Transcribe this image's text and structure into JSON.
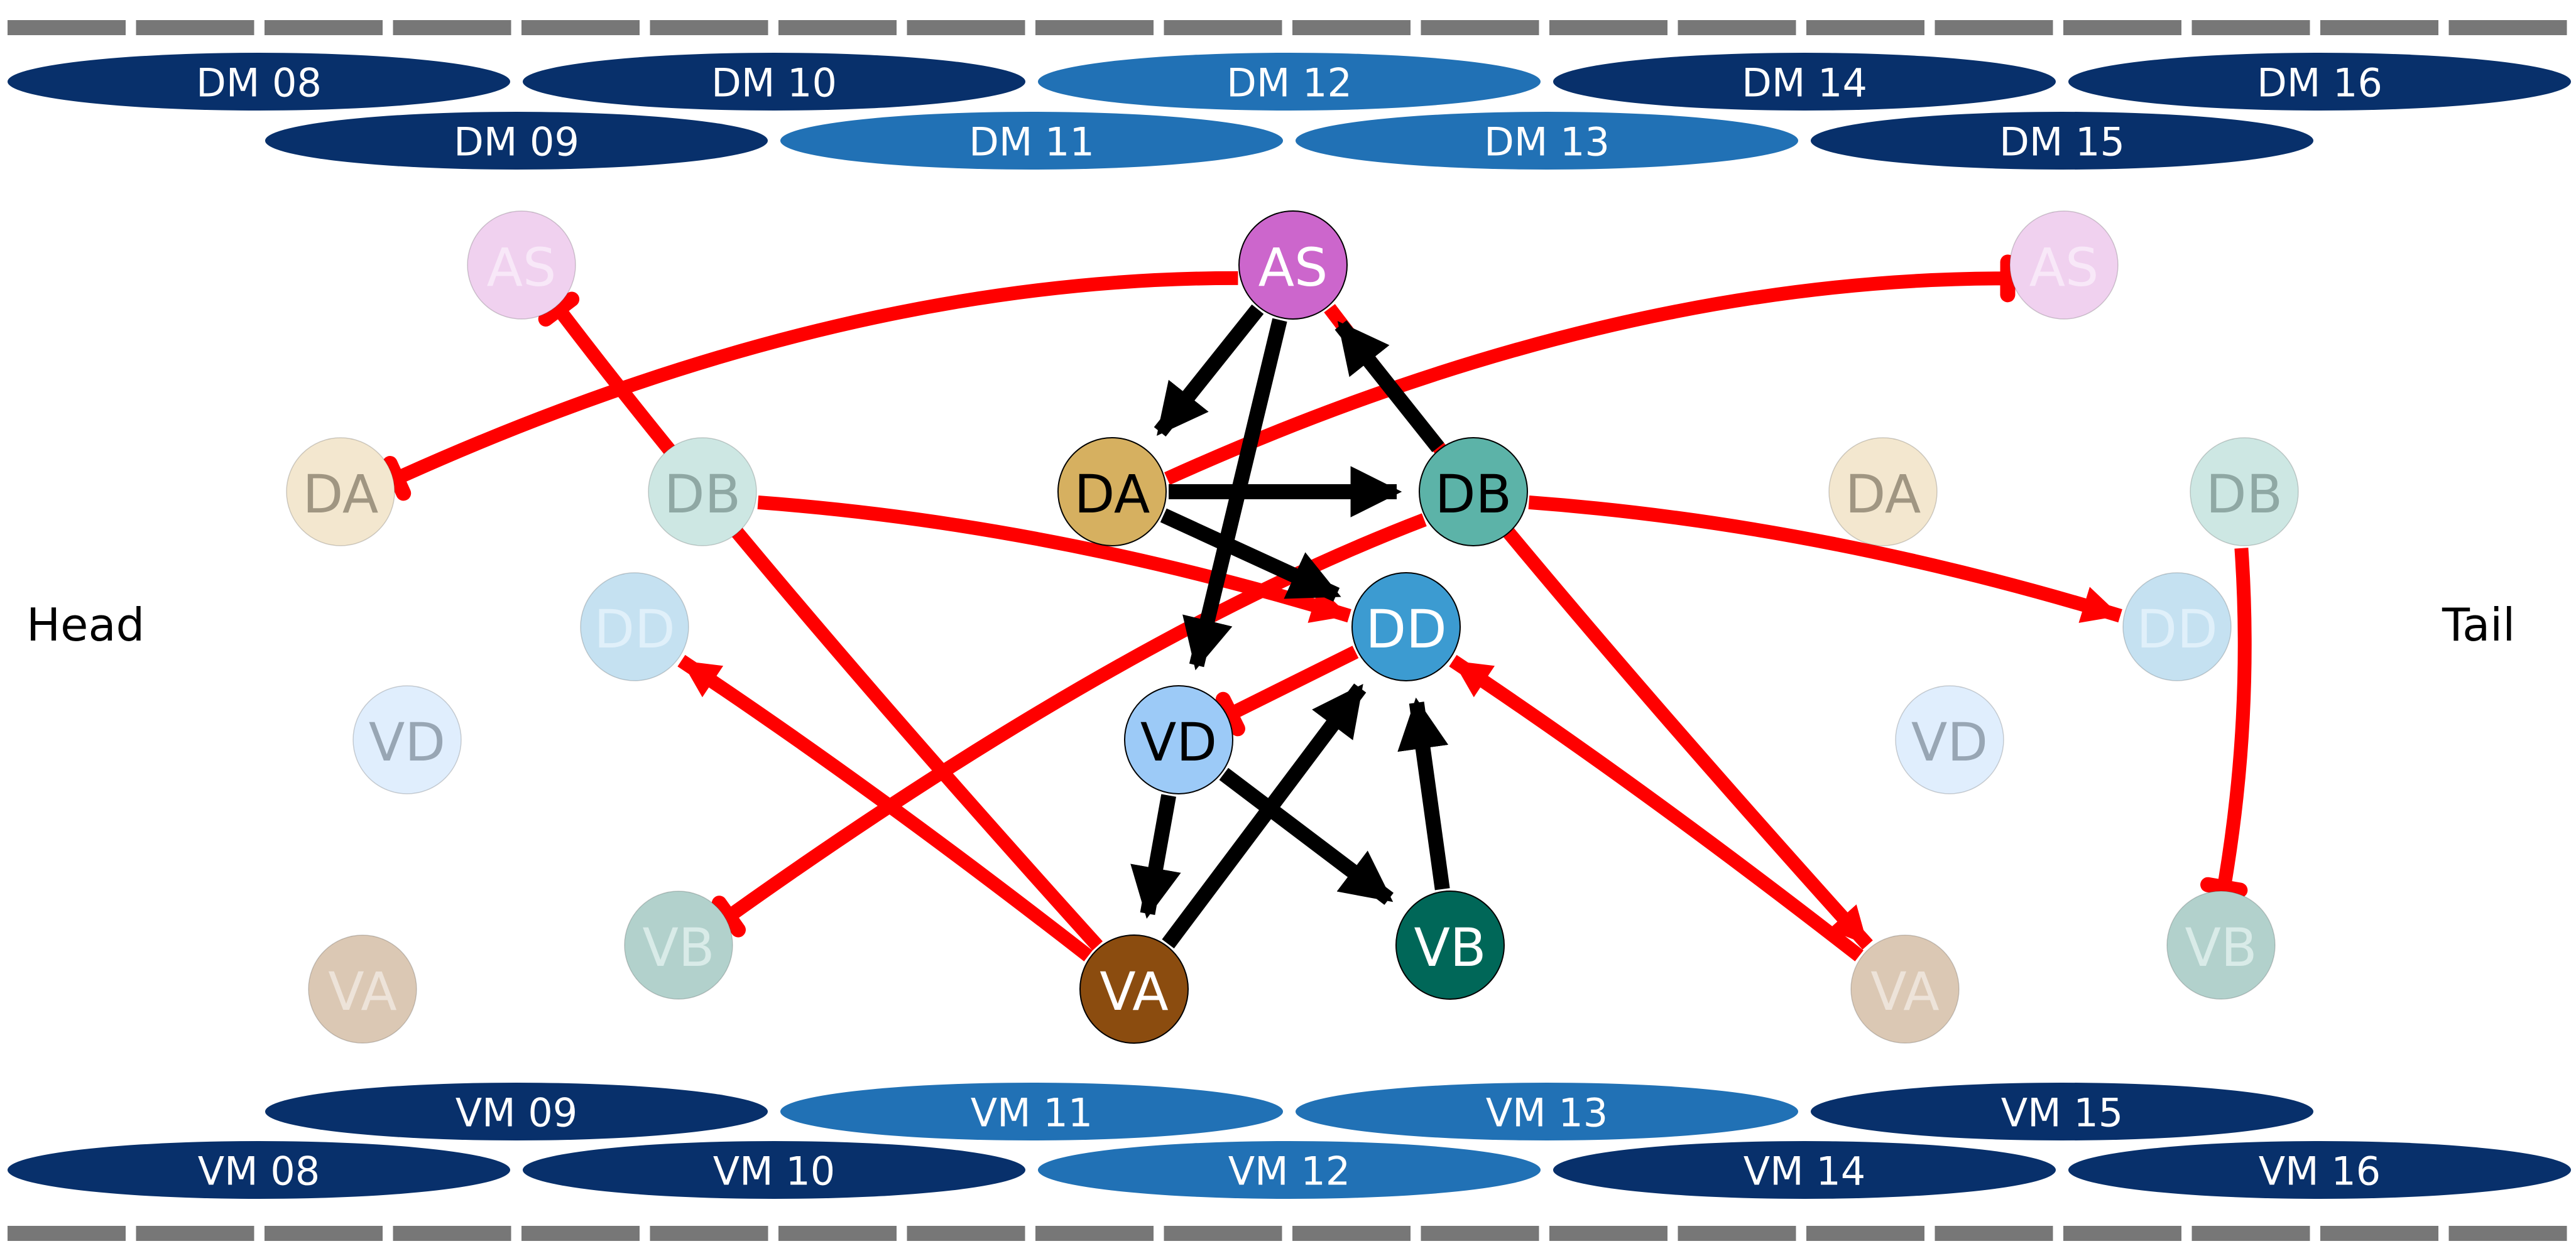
{
  "side_labels": {
    "head": "Head",
    "tail": "Tail"
  },
  "colors": {
    "excitatory_edge": "#000000",
    "inhibitory_edge": "#ff0000",
    "muscle_dark": "#08306b",
    "muscle_mid": "#2171b5",
    "rail": "#777777"
  },
  "dorsal_muscles": {
    "row1": [
      {
        "label": "DM 08",
        "shade": "dark"
      },
      {
        "label": "DM 10",
        "shade": "dark"
      },
      {
        "label": "DM 12",
        "shade": "mid"
      },
      {
        "label": "DM 14",
        "shade": "dark"
      },
      {
        "label": "DM 16",
        "shade": "dark"
      }
    ],
    "row2": [
      {
        "label": "DM 09",
        "shade": "dark"
      },
      {
        "label": "DM 11",
        "shade": "mid"
      },
      {
        "label": "DM 13",
        "shade": "mid"
      },
      {
        "label": "DM 15",
        "shade": "dark"
      }
    ]
  },
  "ventral_muscles": {
    "row1": [
      {
        "label": "VM 09",
        "shade": "dark"
      },
      {
        "label": "VM 11",
        "shade": "mid"
      },
      {
        "label": "VM 13",
        "shade": "mid"
      },
      {
        "label": "VM 15",
        "shade": "dark"
      }
    ],
    "row2": [
      {
        "label": "VM 08",
        "shade": "dark"
      },
      {
        "label": "VM 10",
        "shade": "dark"
      },
      {
        "label": "VM 12",
        "shade": "mid"
      },
      {
        "label": "VM 14",
        "shade": "dark"
      },
      {
        "label": "VM 16",
        "shade": "dark"
      }
    ]
  },
  "neurons": {
    "central": [
      {
        "id": "AS",
        "label": "AS",
        "fill": "#cc66cc",
        "text_color": "#ffffff"
      },
      {
        "id": "DA",
        "label": "DA",
        "fill": "#d6b060",
        "text_color": "#000000"
      },
      {
        "id": "DB",
        "label": "DB",
        "fill": "#5cb3a8",
        "text_color": "#000000"
      },
      {
        "id": "DD",
        "label": "DD",
        "fill": "#3c9bd1",
        "text_color": "#ffffff"
      },
      {
        "id": "VD",
        "label": "VD",
        "fill": "#9ccaf7",
        "text_color": "#000000"
      },
      {
        "id": "VA",
        "label": "VA",
        "fill": "#8b4c0f",
        "text_color": "#ffffff"
      },
      {
        "id": "VB",
        "label": "VB",
        "fill": "#006758",
        "text_color": "#ffffff"
      }
    ],
    "head_ghosts": [
      {
        "id": "AS",
        "label": "AS",
        "fill": "#f0d1ef",
        "text_color": "#f8e8f8"
      },
      {
        "id": "DA",
        "label": "DA",
        "fill": "#f3e7cf",
        "text_color": "#a09682"
      },
      {
        "id": "DB",
        "label": "DB",
        "fill": "#cde7e3",
        "text_color": "#8fa8a4"
      },
      {
        "id": "DD",
        "label": "DD",
        "fill": "#c5e1f1",
        "text_color": "#e0f0fa"
      },
      {
        "id": "VD",
        "label": "VD",
        "fill": "#e0eefd",
        "text_color": "#98a6b4"
      },
      {
        "id": "VB",
        "label": "VB",
        "fill": "#b2d1cc",
        "text_color": "#d9ebe8"
      },
      {
        "id": "VA",
        "label": "VA",
        "fill": "#dbc8b4",
        "text_color": "#ede3d9"
      }
    ],
    "tail_ghosts": [
      {
        "id": "AS",
        "label": "AS",
        "fill": "#f0d1ef",
        "text_color": "#f8e8f8"
      },
      {
        "id": "DA",
        "label": "DA",
        "fill": "#f3e7cf",
        "text_color": "#a09682"
      },
      {
        "id": "DB",
        "label": "DB",
        "fill": "#cde7e3",
        "text_color": "#8fa8a4"
      },
      {
        "id": "DD",
        "label": "DD",
        "fill": "#c5e1f1",
        "text_color": "#e0f0fa"
      },
      {
        "id": "VD",
        "label": "VD",
        "fill": "#e0eefd",
        "text_color": "#98a6b4"
      },
      {
        "id": "VA",
        "label": "VA",
        "fill": "#dbc8b4",
        "text_color": "#ede3d9"
      },
      {
        "id": "VB",
        "label": "VB",
        "fill": "#b2d1cc",
        "text_color": "#d9ebe8"
      }
    ]
  },
  "edges": {
    "excitatory": [
      {
        "from": "AS",
        "to": "DA"
      },
      {
        "from": "AS",
        "to": "VD"
      },
      {
        "from": "DB",
        "to": "AS"
      },
      {
        "from": "DA",
        "to": "DB"
      },
      {
        "from": "DA",
        "to": "DD"
      },
      {
        "from": "VD",
        "to": "VA"
      },
      {
        "from": "VD",
        "to": "VB"
      },
      {
        "from": "VA",
        "to": "DD"
      },
      {
        "from": "VB",
        "to": "DD"
      }
    ],
    "inhibitory_local": [
      {
        "from": "DD",
        "to": "VD"
      }
    ],
    "inhibitory_cross": [
      {
        "from": "AS",
        "to": "head DA"
      },
      {
        "from": "DA",
        "to": "tail AS"
      },
      {
        "from": "head DB",
        "to": "DD"
      },
      {
        "from": "DB",
        "to": "tail DD"
      },
      {
        "from": "VA",
        "to": "head AS"
      },
      {
        "from": "VA",
        "to": "head DD"
      },
      {
        "from": "DB",
        "to": "head VB"
      },
      {
        "from": "AS",
        "to": "tail VA"
      },
      {
        "from": "tail VA",
        "to": "DD"
      },
      {
        "from": "tail DB",
        "to": "tail VB"
      }
    ]
  }
}
